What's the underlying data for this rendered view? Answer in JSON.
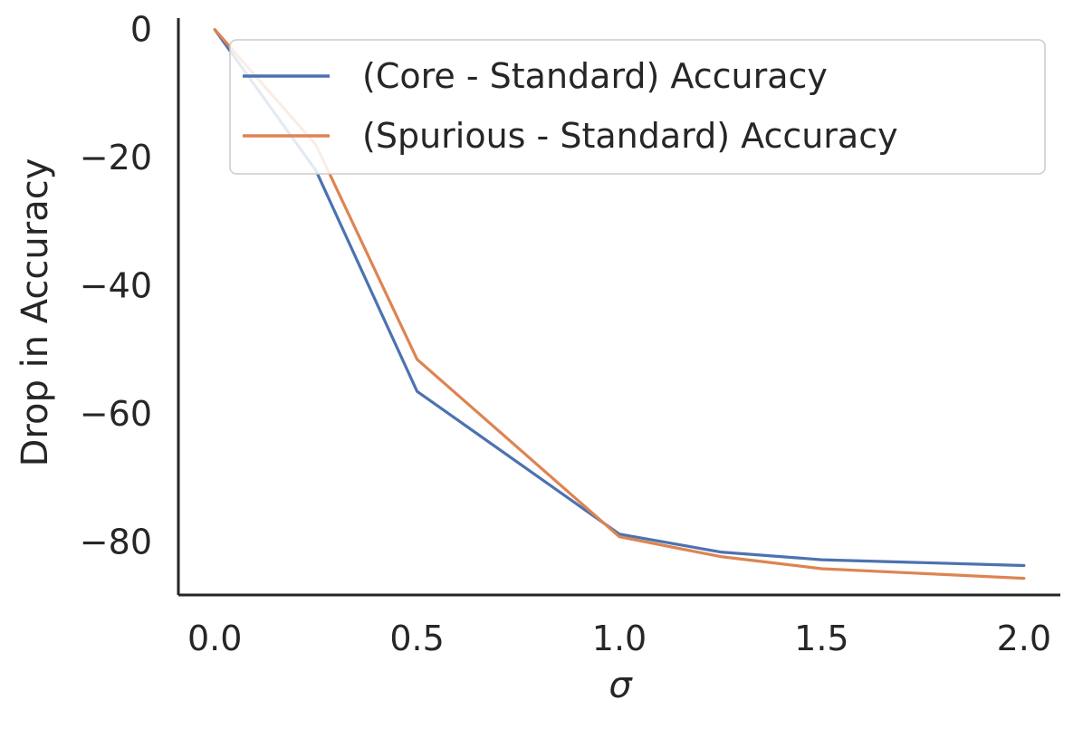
{
  "chart_data": {
    "type": "line",
    "title": "",
    "xlabel": "σ",
    "ylabel": "Drop in Accuracy",
    "xlim": [
      -0.09,
      2.09
    ],
    "ylim": [
      -88.3,
      1.8
    ],
    "x_ticks": [
      0.0,
      0.5,
      1.0,
      1.5,
      2.0
    ],
    "x_tick_labels": [
      "0.0",
      "0.5",
      "1.0",
      "1.5",
      "2.0"
    ],
    "y_ticks": [
      0,
      -20,
      -40,
      -60,
      -80
    ],
    "y_tick_labels": [
      "0",
      "−20",
      "−40",
      "−60",
      "−80"
    ],
    "grid": false,
    "legend_position": "upper-right",
    "series": [
      {
        "name": "(Core - Standard) Accuracy",
        "color": "#4c72b0",
        "x": [
          0.0,
          0.25,
          0.5,
          1.0,
          1.25,
          1.5,
          2.0
        ],
        "y": [
          0,
          -22,
          -56.5,
          -78.8,
          -81.6,
          -82.8,
          -83.7
        ]
      },
      {
        "name": "(Spurious - Standard) Accuracy",
        "color": "#dd8452",
        "x": [
          0.0,
          0.25,
          0.5,
          1.0,
          1.25,
          1.5,
          2.0
        ],
        "y": [
          0,
          -18,
          -51.5,
          -79.2,
          -82.3,
          -84.2,
          -85.7
        ]
      }
    ]
  }
}
